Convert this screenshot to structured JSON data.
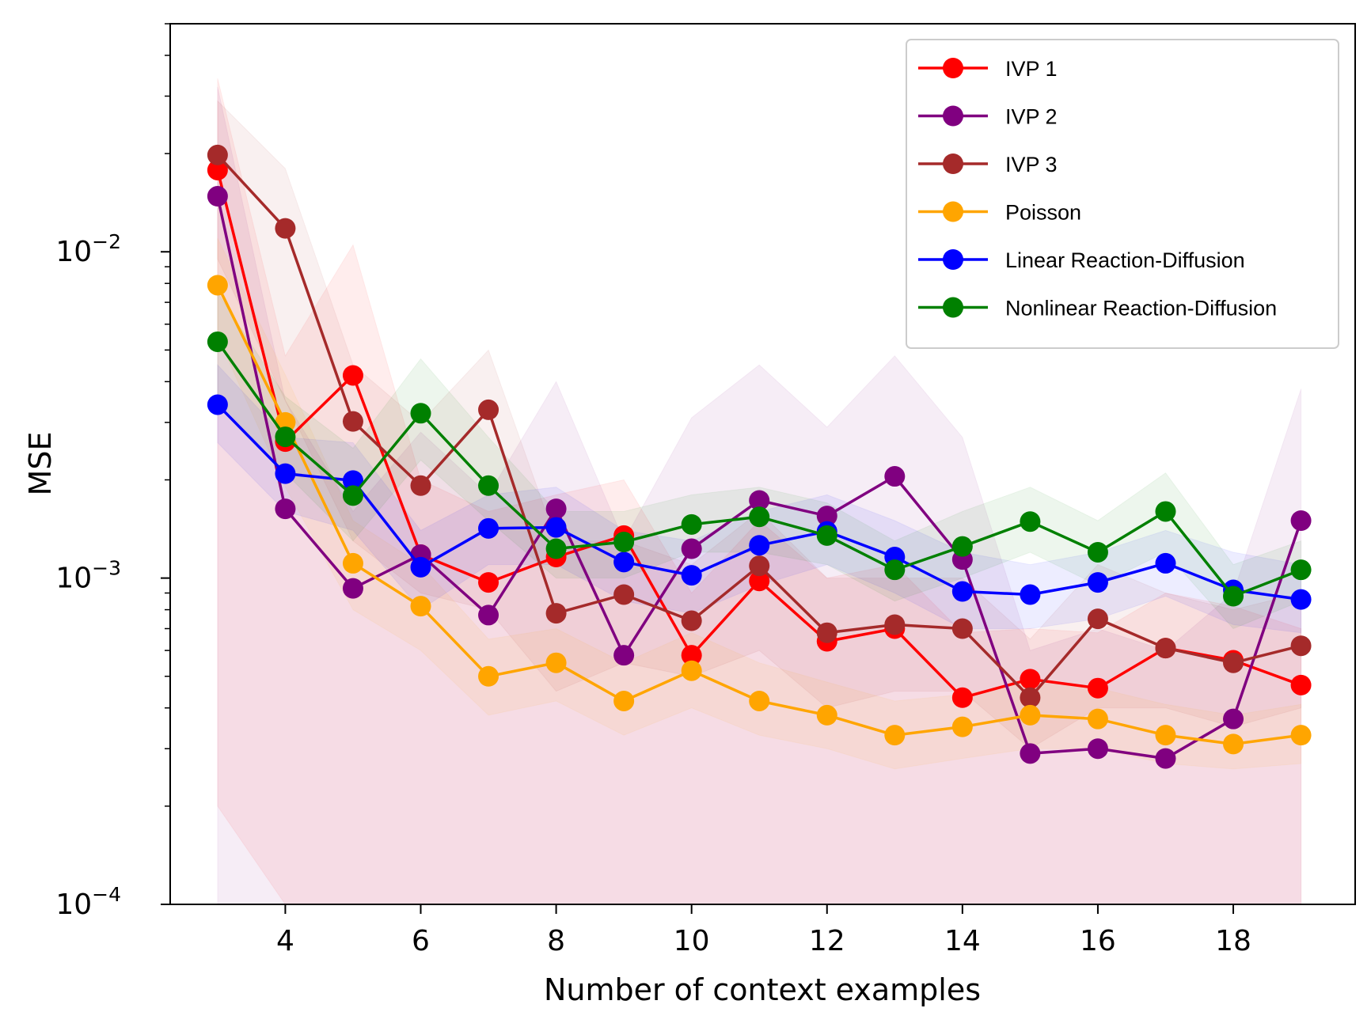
{
  "chart_data": {
    "type": "line",
    "xlabel": "Number of context examples",
    "ylabel": "MSE",
    "yscale": "log",
    "xlim": [
      2.3,
      19.8
    ],
    "ylim": [
      0.0001,
      0.05
    ],
    "x_ticks": [
      4,
      6,
      8,
      10,
      12,
      14,
      16,
      18
    ],
    "y_ticks": [
      {
        "value": 0.0001,
        "base": "10",
        "exp": "−4"
      },
      {
        "value": 0.001,
        "base": "10",
        "exp": "−3"
      },
      {
        "value": 0.01,
        "base": "10",
        "exp": "−2"
      }
    ],
    "legend_position": "upper right",
    "x": [
      3,
      4,
      5,
      6,
      7,
      8,
      9,
      10,
      11,
      12,
      13,
      14,
      15,
      16,
      17,
      18,
      19
    ],
    "series": [
      {
        "name": "IVP 1",
        "color": "#ff0000",
        "values": [
          0.0178,
          0.00262,
          0.00418,
          0.00118,
          0.00097,
          0.00116,
          0.00135,
          0.00058,
          0.00098,
          0.00064,
          0.0007,
          0.00043,
          0.00049,
          0.00046,
          0.00061,
          0.00056,
          0.00047
        ],
        "lower": [
          0.0002,
          0.0001,
          0.0001,
          0.0001,
          0.0001,
          0.0001,
          0.0001,
          0.0001,
          0.0001,
          0.0001,
          0.0001,
          0.0001,
          0.0001,
          0.0001,
          0.0001,
          0.0001,
          0.0001
        ],
        "upper": [
          0.034,
          0.0048,
          0.0105,
          0.002,
          0.0016,
          0.0018,
          0.002,
          0.0009,
          0.0015,
          0.001,
          0.0011,
          0.00068,
          0.0007,
          0.00068,
          0.0009,
          0.00082,
          0.0007
        ]
      },
      {
        "name": "IVP 2",
        "color": "#800080",
        "values": [
          0.0148,
          0.00163,
          0.00093,
          0.00118,
          0.00077,
          0.00163,
          0.00058,
          0.00123,
          0.00173,
          0.00155,
          0.00205,
          0.00114,
          0.00029,
          0.0003,
          0.00028,
          0.00037,
          0.0015
        ],
        "lower": [
          0.0001,
          0.0001,
          0.0001,
          0.0001,
          0.0001,
          0.0001,
          0.0001,
          0.0001,
          0.0001,
          0.0001,
          0.0001,
          0.0001,
          0.0001,
          0.0001,
          0.0001,
          0.0001,
          0.0001
        ],
        "upper": [
          0.032,
          0.0035,
          0.0016,
          0.0028,
          0.0018,
          0.004,
          0.0013,
          0.0031,
          0.0045,
          0.0029,
          0.0048,
          0.0027,
          0.0006,
          0.0007,
          0.0006,
          0.0009,
          0.0038
        ]
      },
      {
        "name": "IVP 3",
        "color": "#a52a2a",
        "values": [
          0.0198,
          0.0118,
          0.00302,
          0.00192,
          0.00328,
          0.00078,
          0.00089,
          0.00074,
          0.00109,
          0.00068,
          0.00072,
          0.0007,
          0.00043,
          0.00075,
          0.00061,
          0.00055,
          0.00062
        ],
        "lower": [
          0.0095,
          0.0035,
          0.0013,
          0.0009,
          0.0008,
          0.00045,
          0.00055,
          0.0005,
          0.0006,
          0.0004,
          0.00045,
          0.00045,
          0.0003,
          0.0004,
          0.0004,
          0.00035,
          0.0004
        ],
        "upper": [
          0.029,
          0.018,
          0.0045,
          0.003,
          0.005,
          0.0013,
          0.0013,
          0.0011,
          0.0016,
          0.001,
          0.001,
          0.001,
          0.00065,
          0.0011,
          0.0009,
          0.0008,
          0.0009
        ]
      },
      {
        "name": "Poisson",
        "color": "#ffa500",
        "values": [
          0.0079,
          0.003,
          0.00111,
          0.00082,
          0.0005,
          0.00055,
          0.00042,
          0.00052,
          0.00042,
          0.00038,
          0.00033,
          0.00035,
          0.00038,
          0.00037,
          0.00033,
          0.00031,
          0.00033
        ],
        "lower": [
          0.0055,
          0.0019,
          0.0008,
          0.0006,
          0.00038,
          0.00042,
          0.00033,
          0.0004,
          0.00033,
          0.0003,
          0.00026,
          0.00028,
          0.0003,
          0.0003,
          0.00027,
          0.00026,
          0.00027
        ],
        "upper": [
          0.011,
          0.0042,
          0.0015,
          0.0011,
          0.00065,
          0.0007,
          0.00055,
          0.00068,
          0.00055,
          0.00048,
          0.00042,
          0.00044,
          0.00048,
          0.00046,
          0.00041,
          0.00038,
          0.00041
        ]
      },
      {
        "name": "Linear Reaction-Diffusion",
        "color": "#0000ff",
        "values": [
          0.0034,
          0.00209,
          0.00199,
          0.00108,
          0.00142,
          0.00143,
          0.00112,
          0.00102,
          0.00126,
          0.00139,
          0.00116,
          0.00091,
          0.00089,
          0.00097,
          0.00111,
          0.00092,
          0.00086
        ],
        "lower": [
          0.0026,
          0.0016,
          0.0014,
          0.0008,
          0.0011,
          0.0011,
          0.00085,
          0.00078,
          0.00095,
          0.0011,
          0.0009,
          0.0007,
          0.0007,
          0.00075,
          0.00088,
          0.00072,
          0.00068
        ],
        "upper": [
          0.0045,
          0.0027,
          0.0026,
          0.0014,
          0.0018,
          0.0019,
          0.0014,
          0.0013,
          0.0016,
          0.0018,
          0.0015,
          0.0012,
          0.0011,
          0.0012,
          0.0014,
          0.0012,
          0.0011
        ]
      },
      {
        "name": "Nonlinear Reaction-Diffusion",
        "color": "#008000",
        "values": [
          0.0053,
          0.00271,
          0.00179,
          0.0032,
          0.00192,
          0.00123,
          0.00129,
          0.00146,
          0.00154,
          0.00135,
          0.00106,
          0.00125,
          0.00149,
          0.0012,
          0.0016,
          0.00088,
          0.00106
        ],
        "lower": [
          0.0035,
          0.0021,
          0.0013,
          0.0023,
          0.0015,
          0.001,
          0.001,
          0.0012,
          0.0012,
          0.0011,
          0.00085,
          0.001,
          0.0012,
          0.00095,
          0.0012,
          0.0007,
          0.00085
        ],
        "upper": [
          0.0075,
          0.0036,
          0.0025,
          0.0047,
          0.0027,
          0.0016,
          0.0016,
          0.0018,
          0.0019,
          0.0017,
          0.0013,
          0.0016,
          0.0019,
          0.0015,
          0.0021,
          0.0011,
          0.0013
        ]
      }
    ]
  }
}
